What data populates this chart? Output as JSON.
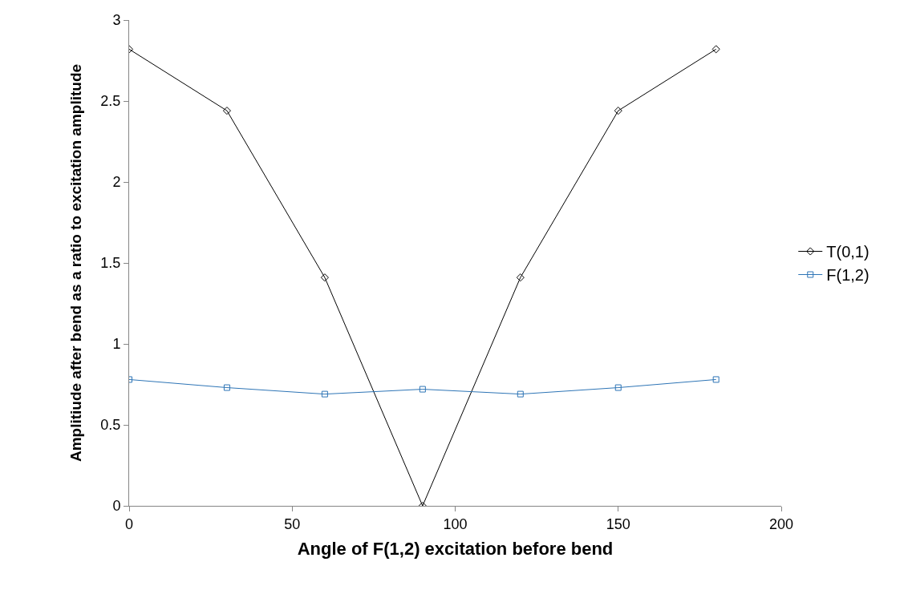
{
  "chart_data": {
    "type": "line",
    "xlabel": "Angle of F(1,2) excitation before bend",
    "ylabel": "Amplitiude after bend as a ratio to excitation amplitude",
    "x": [
      0,
      30,
      60,
      90,
      120,
      150,
      180
    ],
    "series": [
      {
        "name": "T(0,1)",
        "color": "#000000",
        "marker": "diamond",
        "values": [
          2.82,
          2.44,
          1.41,
          0,
          1.41,
          2.44,
          2.82
        ]
      },
      {
        "name": "F(1,2)",
        "color": "#2e75b6",
        "marker": "square",
        "values": [
          0.78,
          0.73,
          0.69,
          0.72,
          0.69,
          0.73,
          0.78
        ]
      }
    ],
    "xlim": [
      0,
      200
    ],
    "xticks": [
      0,
      50,
      100,
      150,
      200
    ],
    "ylim": [
      0,
      3
    ],
    "yticks": [
      0,
      0.5,
      1,
      1.5,
      2,
      2.5,
      3
    ],
    "grid": false,
    "legend": "right",
    "line_style": "solid"
  }
}
